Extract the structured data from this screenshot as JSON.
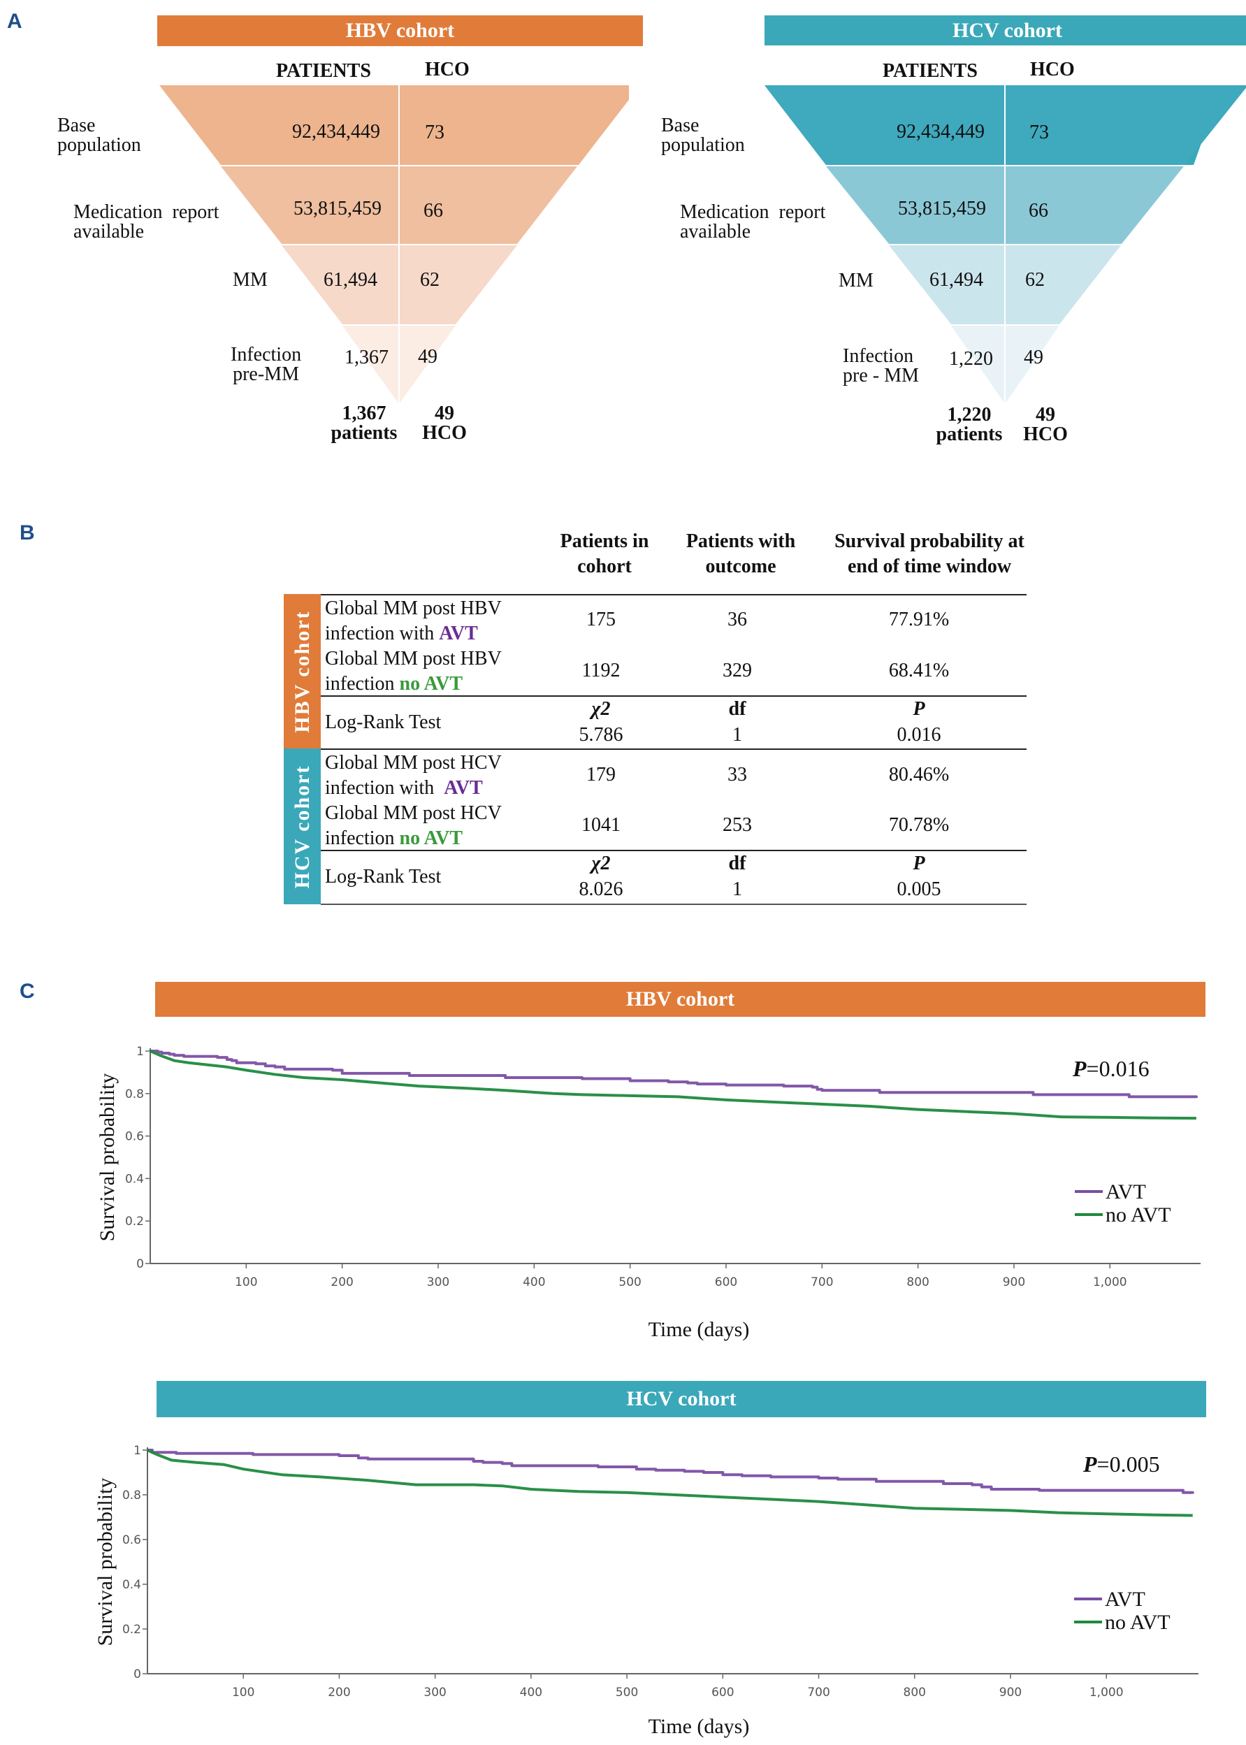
{
  "panels": {
    "a": "A",
    "b": "B",
    "c": "C"
  },
  "colors": {
    "hbv": "#e07b39",
    "hcv": "#3aa8b9",
    "avt": "#7b4ea3",
    "no_avt": "#1e8a3e",
    "avt_text": "#6a2c91",
    "no_avt_text": "#3a9a3a"
  },
  "funnels": [
    {
      "title": "HBV cohort",
      "col_patients": "PATIENTS",
      "col_hco": "HCO",
      "stages": [
        {
          "label_line1": "Base",
          "label_line2": "population",
          "patients": "92,434,449",
          "hco": "73"
        },
        {
          "label_line1": "Medication  report",
          "label_line2": "available",
          "patients": "53,815,459",
          "hco": "66"
        },
        {
          "label_line1": "MM",
          "label_line2": "",
          "patients": "61,494",
          "hco": "62"
        },
        {
          "label_line1": "Infection",
          "label_line2": "pre-MM",
          "patients": "1,367",
          "hco": "49"
        }
      ],
      "final_patients_num": "1,367",
      "final_patients_label": "patients",
      "final_hco_num": "49",
      "final_hco_label": "HCO"
    },
    {
      "title": "HCV cohort",
      "col_patients": "PATIENTS",
      "col_hco": "HCO",
      "stages": [
        {
          "label_line1": "Base",
          "label_line2": "population",
          "patients": "92,434,449",
          "hco": "73"
        },
        {
          "label_line1": "Medication  report",
          "label_line2": "available",
          "patients": "53,815,459",
          "hco": "66"
        },
        {
          "label_line1": "MM",
          "label_line2": "",
          "patients": "61,494",
          "hco": "62"
        },
        {
          "label_line1": "Infection",
          "label_line2": "pre - MM",
          "patients": "1,220",
          "hco": "49"
        }
      ],
      "final_patients_num": "1,220",
      "final_patients_label": "patients",
      "final_hco_num": "49",
      "final_hco_label": "HCO"
    }
  ],
  "table": {
    "headers": [
      {
        "line1": "Patients in",
        "line2": "cohort"
      },
      {
        "line1": "Patients with",
        "line2": "outcome"
      },
      {
        "line1": "Survival probability at",
        "line2": "end of time window"
      }
    ],
    "groups": [
      {
        "name": "HBV cohort",
        "rows": [
          {
            "line1": "Global MM post HBV",
            "line2_prefix": "infection with ",
            "line2_tag": "AVT",
            "tag_type": "avt",
            "patients": "175",
            "outcome": "36",
            "survival": "77.91%"
          },
          {
            "line1": "Global MM post HBV",
            "line2_prefix": "infection ",
            "line2_tag": "no AVT",
            "tag_type": "noavt",
            "patients": "1192",
            "outcome": "329",
            "survival": "68.41%"
          }
        ],
        "test": {
          "label": "Log-Rank Test",
          "h1": "χ2",
          "h2": "df",
          "h3": "P",
          "v1": "5.786",
          "v2": "1",
          "v3": "0.016"
        }
      },
      {
        "name": "HCV cohort",
        "rows": [
          {
            "line1": "Global MM post HCV",
            "line2_prefix": "infection with  ",
            "line2_tag": "AVT",
            "tag_type": "avt",
            "patients": "179",
            "outcome": "33",
            "survival": "80.46%"
          },
          {
            "line1": "Global MM post HCV",
            "line2_prefix": "infection ",
            "line2_tag": "no AVT",
            "tag_type": "noavt",
            "patients": "1041",
            "outcome": "253",
            "survival": "70.78%"
          }
        ],
        "test": {
          "label": "Log-Rank Test",
          "h1": "χ2",
          "h2": "df",
          "h3": "P",
          "v1": "8.026",
          "v2": "1",
          "v3": "0.005"
        }
      }
    ]
  },
  "chart_data": [
    {
      "type": "line",
      "title": "HBV cohort",
      "xlabel": "Time (days)",
      "ylabel": "Survival probability",
      "xlim": [
        0,
        1095
      ],
      "ylim": [
        0,
        1
      ],
      "x_ticks": [
        100,
        200,
        300,
        400,
        500,
        600,
        700,
        800,
        900,
        1000
      ],
      "x_tick_labels": [
        "100",
        "200",
        "300",
        "400",
        "500",
        "600",
        "700",
        "800",
        "900",
        "1,000"
      ],
      "y_ticks": [
        0,
        0.2,
        0.4,
        0.6,
        0.8,
        1
      ],
      "y_tick_labels": [
        "0",
        "0.2",
        "0.4",
        "0.6",
        "0.8",
        "1"
      ],
      "grid": false,
      "legend": "right",
      "annotation": {
        "italic": "P",
        "text": "=0.016"
      },
      "series": [
        {
          "name": "AVT",
          "step": true,
          "x": [
            0,
            8,
            12,
            20,
            25,
            35,
            70,
            80,
            85,
            90,
            95,
            110,
            120,
            130,
            140,
            190,
            200,
            250,
            270,
            370,
            450,
            500,
            540,
            560,
            570,
            600,
            630,
            660,
            690,
            695,
            700,
            760,
            920,
            1020,
            1090
          ],
          "y": [
            1.0,
            0.995,
            0.99,
            0.985,
            0.98,
            0.975,
            0.97,
            0.96,
            0.955,
            0.945,
            0.945,
            0.94,
            0.93,
            0.925,
            0.915,
            0.91,
            0.895,
            0.895,
            0.885,
            0.875,
            0.87,
            0.86,
            0.855,
            0.85,
            0.845,
            0.84,
            0.84,
            0.835,
            0.83,
            0.82,
            0.815,
            0.805,
            0.795,
            0.785,
            0.779
          ]
        },
        {
          "name": "no AVT",
          "step": false,
          "x": [
            0,
            10,
            25,
            40,
            60,
            80,
            100,
            130,
            160,
            200,
            240,
            280,
            330,
            370,
            420,
            450,
            500,
            550,
            600,
            650,
            700,
            750,
            800,
            850,
            900,
            950,
            1000,
            1050,
            1090
          ],
          "y": [
            1.0,
            0.98,
            0.955,
            0.945,
            0.935,
            0.925,
            0.91,
            0.89,
            0.875,
            0.865,
            0.85,
            0.835,
            0.825,
            0.815,
            0.8,
            0.795,
            0.79,
            0.785,
            0.77,
            0.76,
            0.75,
            0.74,
            0.725,
            0.715,
            0.705,
            0.69,
            0.688,
            0.685,
            0.684
          ]
        }
      ]
    },
    {
      "type": "line",
      "title": "HCV cohort",
      "xlabel": "Time (days)",
      "ylabel": "Survival probability",
      "xlim": [
        0,
        1095
      ],
      "ylim": [
        0,
        1
      ],
      "x_ticks": [
        100,
        200,
        300,
        400,
        500,
        600,
        700,
        800,
        900,
        1000
      ],
      "x_tick_labels": [
        "100",
        "200",
        "300",
        "400",
        "500",
        "600",
        "700",
        "800",
        "900",
        "1,000"
      ],
      "y_ticks": [
        0,
        0.2,
        0.4,
        0.6,
        0.8,
        1
      ],
      "y_tick_labels": [
        "0",
        "0.2",
        "0.4",
        "0.6",
        "0.8",
        "1"
      ],
      "grid": false,
      "legend": "right",
      "annotation": {
        "italic": "P",
        "text": "=0.005"
      },
      "series": [
        {
          "name": "AVT",
          "step": true,
          "x": [
            0,
            5,
            30,
            110,
            200,
            220,
            230,
            340,
            350,
            370,
            380,
            470,
            510,
            530,
            560,
            580,
            600,
            620,
            650,
            700,
            720,
            760,
            830,
            860,
            870,
            880,
            930,
            1080,
            1090
          ],
          "y": [
            1.0,
            0.99,
            0.985,
            0.98,
            0.975,
            0.965,
            0.96,
            0.95,
            0.945,
            0.94,
            0.93,
            0.925,
            0.915,
            0.91,
            0.905,
            0.9,
            0.89,
            0.885,
            0.88,
            0.875,
            0.87,
            0.86,
            0.85,
            0.845,
            0.835,
            0.825,
            0.82,
            0.81,
            0.805
          ]
        },
        {
          "name": "no AVT",
          "step": false,
          "x": [
            0,
            10,
            25,
            50,
            80,
            100,
            140,
            180,
            230,
            280,
            340,
            370,
            400,
            450,
            500,
            550,
            600,
            650,
            700,
            750,
            800,
            850,
            900,
            950,
            1000,
            1050,
            1090
          ],
          "y": [
            1.0,
            0.98,
            0.955,
            0.945,
            0.935,
            0.915,
            0.89,
            0.88,
            0.865,
            0.845,
            0.845,
            0.84,
            0.825,
            0.815,
            0.81,
            0.8,
            0.79,
            0.78,
            0.77,
            0.755,
            0.74,
            0.735,
            0.73,
            0.72,
            0.715,
            0.71,
            0.708
          ]
        }
      ]
    }
  ]
}
